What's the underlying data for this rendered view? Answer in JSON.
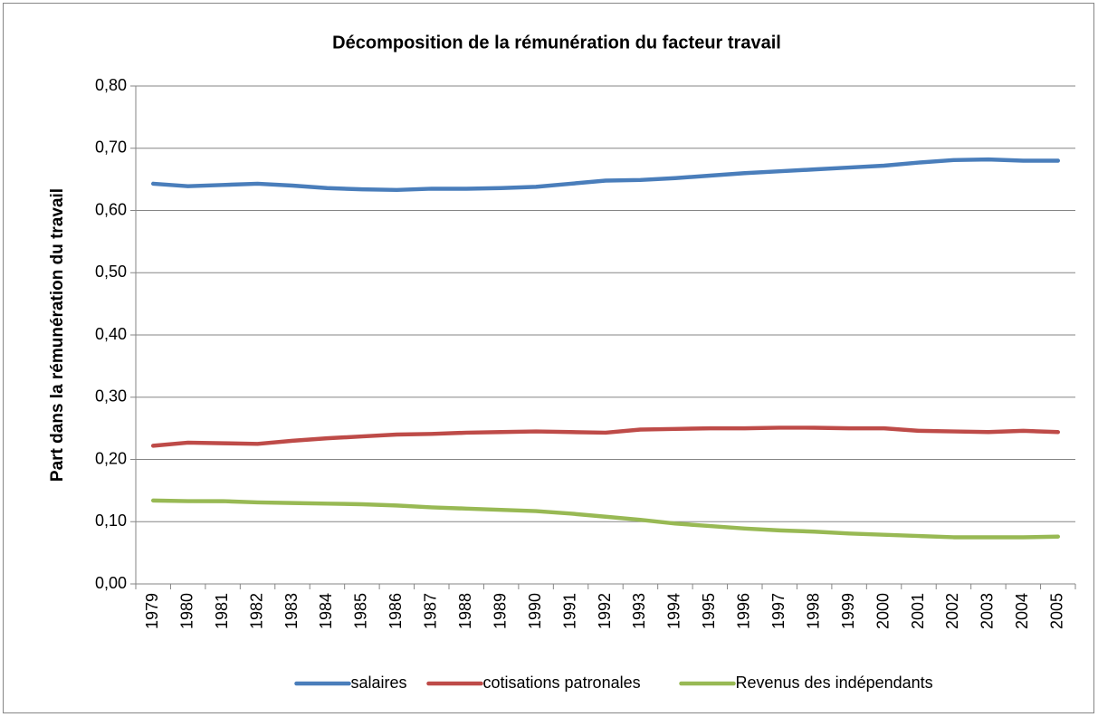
{
  "chart_data": {
    "type": "line",
    "title": "Décomposition de la rémunération du facteur travail",
    "y_label": "Part dans la rémunération du travail",
    "categories": [
      "1979",
      "1980",
      "1981",
      "1982",
      "1983",
      "1984",
      "1985",
      "1986",
      "1987",
      "1988",
      "1989",
      "1990",
      "1991",
      "1992",
      "1993",
      "1994",
      "1995",
      "1996",
      "1997",
      "1998",
      "1999",
      "2000",
      "2001",
      "2002",
      "2003",
      "2004",
      "2005"
    ],
    "series": [
      {
        "name": "salaires",
        "color": "#4a7ebb",
        "values": [
          0.643,
          0.639,
          0.641,
          0.643,
          0.64,
          0.636,
          0.634,
          0.633,
          0.635,
          0.635,
          0.636,
          0.638,
          0.643,
          0.648,
          0.649,
          0.652,
          0.656,
          0.66,
          0.663,
          0.666,
          0.669,
          0.672,
          0.677,
          0.681,
          0.682,
          0.68,
          0.68
        ]
      },
      {
        "name": "cotisations patronales",
        "color": "#be4b48",
        "values": [
          0.222,
          0.227,
          0.226,
          0.225,
          0.23,
          0.234,
          0.237,
          0.24,
          0.241,
          0.243,
          0.244,
          0.245,
          0.244,
          0.243,
          0.248,
          0.249,
          0.25,
          0.25,
          0.251,
          0.251,
          0.25,
          0.25,
          0.246,
          0.245,
          0.244,
          0.246,
          0.244
        ]
      },
      {
        "name": "Revenus des indépendants",
        "color": "#98b954",
        "values": [
          0.134,
          0.133,
          0.133,
          0.131,
          0.13,
          0.129,
          0.128,
          0.126,
          0.123,
          0.121,
          0.119,
          0.117,
          0.113,
          0.108,
          0.103,
          0.097,
          0.093,
          0.089,
          0.086,
          0.084,
          0.081,
          0.079,
          0.077,
          0.075,
          0.075,
          0.075,
          0.076
        ]
      }
    ],
    "ylim": [
      0,
      0.8
    ],
    "yticks": [
      {
        "value": 0,
        "label": "0,00"
      },
      {
        "value": 0.1,
        "label": "0,10"
      },
      {
        "value": 0.2,
        "label": "0,20"
      },
      {
        "value": 0.3,
        "label": "0,30"
      },
      {
        "value": 0.4,
        "label": "0,40"
      },
      {
        "value": 0.5,
        "label": "0,50"
      },
      {
        "value": 0.6,
        "label": "0,60"
      },
      {
        "value": 0.7,
        "label": "0,70"
      },
      {
        "value": 0.8,
        "label": "0,80"
      }
    ],
    "grid": true,
    "legend": "bottom"
  }
}
